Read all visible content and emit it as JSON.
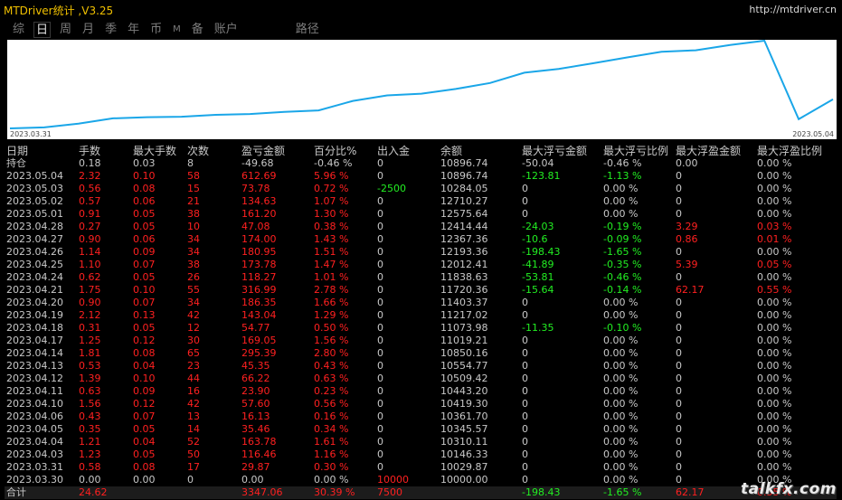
{
  "app": {
    "title": "MTDriver统计 ,V3.25",
    "url": "http://mtdriver.cn"
  },
  "tabs": [
    {
      "label": "综",
      "active": false
    },
    {
      "label": "日",
      "active": true
    },
    {
      "label": "周",
      "active": false
    },
    {
      "label": "月",
      "active": false
    },
    {
      "label": "季",
      "active": false
    },
    {
      "label": "年",
      "active": false
    },
    {
      "label": "币",
      "active": false
    },
    {
      "label": "M",
      "active": false
    },
    {
      "label": "备",
      "active": false
    },
    {
      "label": "账户",
      "active": false
    },
    {
      "label": "路径",
      "active": false
    }
  ],
  "chart": {
    "start_label": "2023.03.31",
    "end_label": "2023.05.04",
    "line_color": "#1aa6e8",
    "balance_points": [
      10000.0,
      10029.87,
      10146.33,
      10310.11,
      10345.57,
      10361.7,
      10419.3,
      10443.2,
      10509.42,
      10554.77,
      10850.16,
      11019.21,
      11073.98,
      11217.02,
      11403.37,
      11720.36,
      11838.63,
      12012.41,
      12193.36,
      12367.36,
      12414.44,
      12575.64,
      12710.27,
      10284.05,
      10896.74
    ]
  },
  "table": {
    "headers": [
      "日期",
      "手数",
      "最大手数",
      "次数",
      "盈亏金额",
      "百分比%",
      "出入金",
      "余额",
      "最大浮亏金额",
      "最大浮亏比例",
      "最大浮盈金额",
      "最大浮盈比例"
    ],
    "holding": {
      "date": "持仓",
      "lots": "0.18",
      "max_lots": "0.03",
      "count": "8",
      "pnl": "-49.68",
      "pct": "-0.46 %",
      "io": "0",
      "balance": "10896.74",
      "mfl": "-50.04",
      "mflp": "-0.46 %",
      "mfp": "0.00",
      "mfpp": "0.00 %"
    },
    "rows": [
      {
        "date": "2023.05.04",
        "lots": "2.32",
        "max_lots": "0.10",
        "count": "58",
        "pnl": "612.69",
        "pct": "5.96 %",
        "io": "0",
        "balance": "10896.74",
        "mfl": "-123.81",
        "mflp": "-1.13 %",
        "mfp": "0",
        "mfpp": "0.00 %"
      },
      {
        "date": "2023.05.03",
        "lots": "0.56",
        "max_lots": "0.08",
        "count": "15",
        "pnl": "73.78",
        "pct": "0.72 %",
        "io": "-2500",
        "balance": "10284.05",
        "mfl": "0",
        "mflp": "0.00 %",
        "mfp": "0",
        "mfpp": "0.00 %"
      },
      {
        "date": "2023.05.02",
        "lots": "0.57",
        "max_lots": "0.06",
        "count": "21",
        "pnl": "134.63",
        "pct": "1.07 %",
        "io": "0",
        "balance": "12710.27",
        "mfl": "0",
        "mflp": "0.00 %",
        "mfp": "0",
        "mfpp": "0.00 %"
      },
      {
        "date": "2023.05.01",
        "lots": "0.91",
        "max_lots": "0.05",
        "count": "38",
        "pnl": "161.20",
        "pct": "1.30 %",
        "io": "0",
        "balance": "12575.64",
        "mfl": "0",
        "mflp": "0.00 %",
        "mfp": "0",
        "mfpp": "0.00 %"
      },
      {
        "date": "2023.04.28",
        "lots": "0.27",
        "max_lots": "0.05",
        "count": "10",
        "pnl": "47.08",
        "pct": "0.38 %",
        "io": "0",
        "balance": "12414.44",
        "mfl": "-24.03",
        "mflp": "-0.19 %",
        "mfp": "3.29",
        "mfpp": "0.03 %"
      },
      {
        "date": "2023.04.27",
        "lots": "0.90",
        "max_lots": "0.06",
        "count": "34",
        "pnl": "174.00",
        "pct": "1.43 %",
        "io": "0",
        "balance": "12367.36",
        "mfl": "-10.6",
        "mflp": "-0.09 %",
        "mfp": "0.86",
        "mfpp": "0.01 %"
      },
      {
        "date": "2023.04.26",
        "lots": "1.14",
        "max_lots": "0.09",
        "count": "34",
        "pnl": "180.95",
        "pct": "1.51 %",
        "io": "0",
        "balance": "12193.36",
        "mfl": "-198.43",
        "mflp": "-1.65 %",
        "mfp": "0",
        "mfpp": "0.00 %"
      },
      {
        "date": "2023.04.25",
        "lots": "1.10",
        "max_lots": "0.07",
        "count": "38",
        "pnl": "173.78",
        "pct": "1.47 %",
        "io": "0",
        "balance": "12012.41",
        "mfl": "-41.89",
        "mflp": "-0.35 %",
        "mfp": "5.39",
        "mfpp": "0.05 %"
      },
      {
        "date": "2023.04.24",
        "lots": "0.62",
        "max_lots": "0.05",
        "count": "26",
        "pnl": "118.27",
        "pct": "1.01 %",
        "io": "0",
        "balance": "11838.63",
        "mfl": "-53.81",
        "mflp": "-0.46 %",
        "mfp": "0",
        "mfpp": "0.00 %"
      },
      {
        "date": "2023.04.21",
        "lots": "1.75",
        "max_lots": "0.10",
        "count": "55",
        "pnl": "316.99",
        "pct": "2.78 %",
        "io": "0",
        "balance": "11720.36",
        "mfl": "-15.64",
        "mflp": "-0.14 %",
        "mfp": "62.17",
        "mfpp": "0.55 %"
      },
      {
        "date": "2023.04.20",
        "lots": "0.90",
        "max_lots": "0.07",
        "count": "34",
        "pnl": "186.35",
        "pct": "1.66 %",
        "io": "0",
        "balance": "11403.37",
        "mfl": "0",
        "mflp": "0.00 %",
        "mfp": "0",
        "mfpp": "0.00 %"
      },
      {
        "date": "2023.04.19",
        "lots": "2.12",
        "max_lots": "0.13",
        "count": "42",
        "pnl": "143.04",
        "pct": "1.29 %",
        "io": "0",
        "balance": "11217.02",
        "mfl": "0",
        "mflp": "0.00 %",
        "mfp": "0",
        "mfpp": "0.00 %"
      },
      {
        "date": "2023.04.18",
        "lots": "0.31",
        "max_lots": "0.05",
        "count": "12",
        "pnl": "54.77",
        "pct": "0.50 %",
        "io": "0",
        "balance": "11073.98",
        "mfl": "-11.35",
        "mflp": "-0.10 %",
        "mfp": "0",
        "mfpp": "0.00 %"
      },
      {
        "date": "2023.04.17",
        "lots": "1.25",
        "max_lots": "0.12",
        "count": "30",
        "pnl": "169.05",
        "pct": "1.56 %",
        "io": "0",
        "balance": "11019.21",
        "mfl": "0",
        "mflp": "0.00 %",
        "mfp": "0",
        "mfpp": "0.00 %"
      },
      {
        "date": "2023.04.14",
        "lots": "1.81",
        "max_lots": "0.08",
        "count": "65",
        "pnl": "295.39",
        "pct": "2.80 %",
        "io": "0",
        "balance": "10850.16",
        "mfl": "0",
        "mflp": "0.00 %",
        "mfp": "0",
        "mfpp": "0.00 %"
      },
      {
        "date": "2023.04.13",
        "lots": "0.53",
        "max_lots": "0.04",
        "count": "23",
        "pnl": "45.35",
        "pct": "0.43 %",
        "io": "0",
        "balance": "10554.77",
        "mfl": "0",
        "mflp": "0.00 %",
        "mfp": "0",
        "mfpp": "0.00 %"
      },
      {
        "date": "2023.04.12",
        "lots": "1.39",
        "max_lots": "0.10",
        "count": "44",
        "pnl": "66.22",
        "pct": "0.63 %",
        "io": "0",
        "balance": "10509.42",
        "mfl": "0",
        "mflp": "0.00 %",
        "mfp": "0",
        "mfpp": "0.00 %"
      },
      {
        "date": "2023.04.11",
        "lots": "0.63",
        "max_lots": "0.09",
        "count": "16",
        "pnl": "23.90",
        "pct": "0.23 %",
        "io": "0",
        "balance": "10443.20",
        "mfl": "0",
        "mflp": "0.00 %",
        "mfp": "0",
        "mfpp": "0.00 %"
      },
      {
        "date": "2023.04.10",
        "lots": "1.56",
        "max_lots": "0.12",
        "count": "42",
        "pnl": "57.60",
        "pct": "0.56 %",
        "io": "0",
        "balance": "10419.30",
        "mfl": "0",
        "mflp": "0.00 %",
        "mfp": "0",
        "mfpp": "0.00 %"
      },
      {
        "date": "2023.04.06",
        "lots": "0.43",
        "max_lots": "0.07",
        "count": "13",
        "pnl": "16.13",
        "pct": "0.16 %",
        "io": "0",
        "balance": "10361.70",
        "mfl": "0",
        "mflp": "0.00 %",
        "mfp": "0",
        "mfpp": "0.00 %"
      },
      {
        "date": "2023.04.05",
        "lots": "0.35",
        "max_lots": "0.05",
        "count": "14",
        "pnl": "35.46",
        "pct": "0.34 %",
        "io": "0",
        "balance": "10345.57",
        "mfl": "0",
        "mflp": "0.00 %",
        "mfp": "0",
        "mfpp": "0.00 %"
      },
      {
        "date": "2023.04.04",
        "lots": "1.21",
        "max_lots": "0.04",
        "count": "52",
        "pnl": "163.78",
        "pct": "1.61 %",
        "io": "0",
        "balance": "10310.11",
        "mfl": "0",
        "mflp": "0.00 %",
        "mfp": "0",
        "mfpp": "0.00 %"
      },
      {
        "date": "2023.04.03",
        "lots": "1.23",
        "max_lots": "0.05",
        "count": "50",
        "pnl": "116.46",
        "pct": "1.16 %",
        "io": "0",
        "balance": "10146.33",
        "mfl": "0",
        "mflp": "0.00 %",
        "mfp": "0",
        "mfpp": "0.00 %"
      },
      {
        "date": "2023.03.31",
        "lots": "0.58",
        "max_lots": "0.08",
        "count": "17",
        "pnl": "29.87",
        "pct": "0.30 %",
        "io": "0",
        "balance": "10029.87",
        "mfl": "0",
        "mflp": "0.00 %",
        "mfp": "0",
        "mfpp": "0.00 %"
      },
      {
        "date": "2023.03.30",
        "lots": "0.00",
        "max_lots": "0.00",
        "count": "0",
        "pnl": "0.00",
        "pct": "0.00 %",
        "io": "10000",
        "balance": "10000.00",
        "mfl": "0",
        "mflp": "0.00 %",
        "mfp": "0",
        "mfpp": "0.00 %"
      }
    ],
    "total": {
      "date": "合计",
      "lots": "24.62",
      "max_lots": "",
      "count": "",
      "pnl": "3347.06",
      "pct": "30.39 %",
      "io": "7500",
      "balance": "",
      "mfl": "-198.43",
      "mflp": "-1.65 %",
      "mfp": "62.17",
      "mfpp": "0.55 %"
    }
  },
  "watermark": "talkfx.com"
}
